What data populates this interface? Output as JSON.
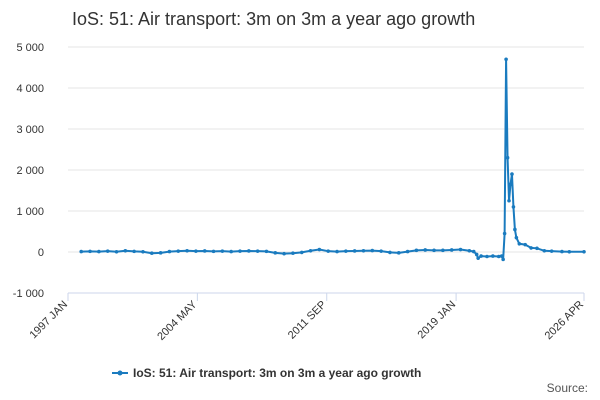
{
  "chart_data": {
    "type": "line",
    "title": "IoS: 51: Air transport: 3m on 3m a year ago growth",
    "x": [
      "1997 OCT",
      "1998 APR",
      "1998 OCT",
      "1999 APR",
      "1999 OCT",
      "2000 APR",
      "2000 OCT",
      "2001 APR",
      "2001 OCT",
      "2002 APR",
      "2002 OCT",
      "2003 APR",
      "2003 OCT",
      "2004 APR",
      "2004 OCT",
      "2005 APR",
      "2005 OCT",
      "2006 APR",
      "2006 OCT",
      "2007 APR",
      "2007 OCT",
      "2008 APR",
      "2008 OCT",
      "2009 APR",
      "2009 OCT",
      "2010 APR",
      "2010 OCT",
      "2011 APR",
      "2011 OCT",
      "2012 APR",
      "2012 OCT",
      "2013 APR",
      "2013 OCT",
      "2014 APR",
      "2014 OCT",
      "2015 APR",
      "2015 OCT",
      "2016 APR",
      "2016 OCT",
      "2017 APR",
      "2017 OCT",
      "2018 APR",
      "2018 OCT",
      "2019 APR",
      "2019 OCT",
      "2020 JAN",
      "2020 MAR",
      "2020 APR",
      "2020 JUN",
      "2020 OCT",
      "2021 FEB",
      "2021 JUN",
      "2021 AUG",
      "2021 SEP",
      "2021 OCT",
      "2021 NOV",
      "2021 DEC",
      "2022 JAN",
      "2022 FEB",
      "2022 MAR",
      "2022 APR",
      "2022 MAY",
      "2022 JUN",
      "2022 AUG",
      "2022 DEC",
      "2023 APR",
      "2023 AUG",
      "2024 JAN",
      "2024 JUN",
      "2025 JAN",
      "2025 JUN",
      "2026 APR"
    ],
    "series": [
      {
        "name": "IoS: 51: Air transport: 3m on 3m a year ago growth",
        "color": "#1a7bbf",
        "values": [
          10,
          15,
          10,
          20,
          5,
          30,
          15,
          5,
          -30,
          -20,
          10,
          20,
          30,
          20,
          25,
          15,
          20,
          10,
          20,
          25,
          20,
          15,
          -20,
          -40,
          -30,
          -10,
          30,
          60,
          20,
          10,
          20,
          25,
          30,
          35,
          20,
          -10,
          -20,
          10,
          40,
          50,
          40,
          40,
          50,
          60,
          30,
          10,
          -60,
          -150,
          -100,
          -110,
          -100,
          -110,
          -100,
          -180,
          450,
          4700,
          2300,
          1250,
          1650,
          1900,
          1100,
          550,
          350,
          200,
          180,
          100,
          90,
          30,
          20,
          10,
          5,
          5
        ]
      }
    ],
    "xlim": [
      "1997 JAN",
      "2026 APR"
    ],
    "xticks": [
      "1997 JAN",
      "2004 MAY",
      "2011 SEP",
      "2019 JAN",
      "2026 APR"
    ],
    "ylim": [
      -1000,
      5000
    ],
    "yticks": [
      {
        "value": -1000,
        "label": "-1 000"
      },
      0,
      {
        "value": 1000,
        "label": "1 000"
      },
      {
        "value": 2000,
        "label": "2 000"
      },
      {
        "value": 3000,
        "label": "3 000"
      },
      {
        "value": 4000,
        "label": "4 000"
      },
      {
        "value": 5000,
        "label": "5 000"
      }
    ],
    "grid": true,
    "legend": "bottom",
    "source": "Source:"
  }
}
